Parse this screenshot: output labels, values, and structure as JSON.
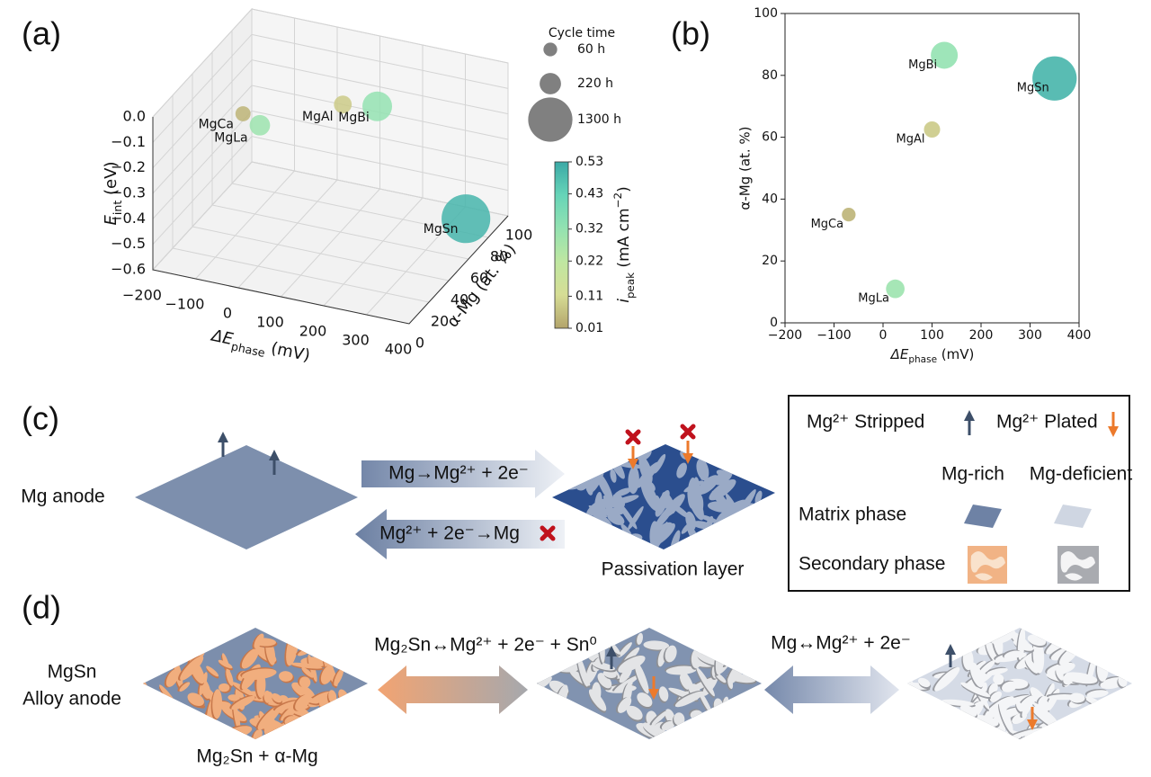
{
  "chart_data": [
    {
      "type": "scatter3d",
      "panel_label": "(a)",
      "x_label": {
        "symbol": "ΔE",
        "subscript": "phase",
        "unit": " (mV)"
      },
      "y_label": "α-Mg (at. %)",
      "z_label": {
        "symbol": "E",
        "subscript": "int",
        "unit": " (eV)"
      },
      "labels": [
        "MgCa",
        "MgLa",
        "MgAl",
        "MgBi",
        "MgSn"
      ],
      "x": [
        -70,
        25,
        100,
        125,
        350
      ],
      "y": [
        35,
        11,
        62.5,
        86.5,
        79
      ],
      "z": [
        -0.09,
        0.0,
        -0.11,
        -0.21,
        -0.54
      ],
      "sizes": [
        60,
        150,
        100,
        400,
        1300
      ],
      "i_peak": [
        0.04,
        0.3,
        0.08,
        0.32,
        0.5
      ],
      "xlim": [
        -200,
        400
      ],
      "xticks": [
        {
          "value": -200,
          "label": "−200"
        },
        {
          "value": -100,
          "label": "−100"
        },
        0,
        100,
        200,
        300,
        400
      ],
      "ylim": [
        0,
        100
      ],
      "yticks": [
        0,
        20,
        40,
        60,
        80,
        100
      ],
      "zlim": [
        -0.6,
        0
      ],
      "zticks": [
        {
          "value": 0,
          "label": "0.0"
        },
        {
          "value": -0.1,
          "label": "−0.1"
        },
        {
          "value": -0.2,
          "label": "−0.2"
        },
        {
          "value": -0.3,
          "label": "−0.3"
        },
        {
          "value": -0.4,
          "label": "−0.4"
        },
        {
          "value": -0.5,
          "label": "−0.5"
        },
        {
          "value": -0.6,
          "label": "−0.6"
        }
      ],
      "size_legend": {
        "title": "Cycle time",
        "values": [
          60,
          220,
          1300
        ],
        "value_labels": [
          "60 h",
          "220 h",
          "1300 h"
        ]
      },
      "colorbar": {
        "label": {
          "symbol": "i",
          "subscript": "peak",
          "unit": " (mA cm",
          "superscript": "−2",
          "close": ")"
        },
        "clim": [
          0.01,
          0.53
        ],
        "ticks": [
          0.01,
          0.11,
          0.22,
          0.32,
          0.43,
          0.53
        ],
        "colormap": [
          "#b3a46b",
          "#d6dd95",
          "#bfe7a1",
          "#93e2b1",
          "#66d4b8",
          "#3ba9a6"
        ]
      }
    },
    {
      "type": "scatter",
      "panel_label": "(b)",
      "x_label": {
        "symbol": "ΔE",
        "subscript": "phase",
        "unit": " (mV)"
      },
      "y_label": "α-Mg (at. %)",
      "labels": [
        "MgCa",
        "MgLa",
        "MgAl",
        "MgBi",
        "MgSn"
      ],
      "x": [
        -70,
        25,
        100,
        125,
        350
      ],
      "y": [
        35,
        11,
        62.5,
        86.5,
        79
      ],
      "sizes": [
        60,
        150,
        100,
        400,
        1300
      ],
      "i_peak": [
        0.04,
        0.3,
        0.08,
        0.32,
        0.5
      ],
      "clim": [
        0.01,
        0.53
      ],
      "colormap": [
        "#b3a46b",
        "#d6dd95",
        "#bfe7a1",
        "#93e2b1",
        "#66d4b8",
        "#3ba9a6"
      ],
      "xlim": [
        -200,
        400
      ],
      "xticks": [
        {
          "value": -200,
          "label": "−200"
        },
        {
          "value": -100,
          "label": "−100"
        },
        0,
        100,
        200,
        300,
        400
      ],
      "ylim": [
        0,
        100
      ],
      "yticks": [
        0,
        20,
        40,
        60,
        80,
        100
      ]
    }
  ],
  "panel_c": {
    "label": "(c)",
    "anode": "Mg anode",
    "forward": "Mg→Mg²⁺ + 2e⁻",
    "reverse": "Mg²⁺ + 2e⁻→Mg",
    "passivation": "Passivation layer",
    "legend": {
      "stripped": "Mg²⁺ Stripped",
      "plated": "Mg²⁺ Plated",
      "rich": "Mg-rich",
      "deficient": "Mg-deficient",
      "matrix": "Matrix phase",
      "secondary": "Secondary phase"
    }
  },
  "panel_d": {
    "label": "(d)",
    "anode": [
      "MgSn",
      "Alloy anode"
    ],
    "reaction_1": "Mg₂Sn↔Mg²⁺ + 2e⁻ + Sn⁰",
    "reaction_2": "Mg↔Mg²⁺ + 2e⁻",
    "composition": "Mg₂Sn + α-Mg"
  }
}
